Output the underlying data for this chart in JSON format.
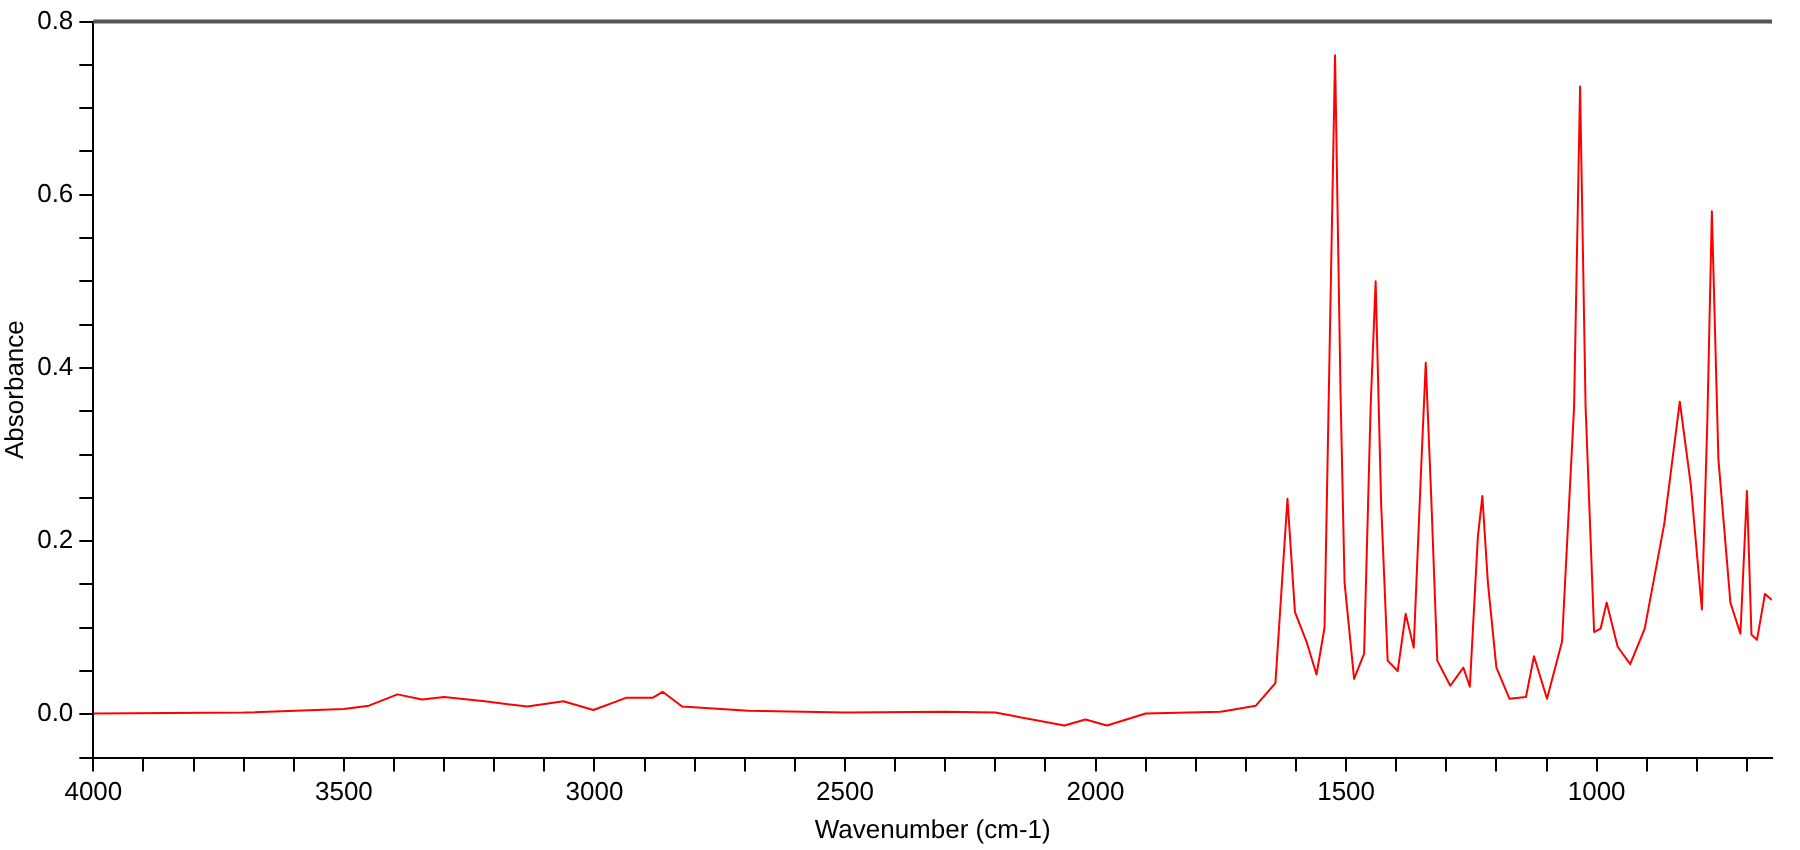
{
  "chart_data": {
    "type": "line",
    "xlabel": "Wavenumber (cm-1)",
    "ylabel": "Absorbance",
    "xlim": [
      4000,
      650
    ],
    "ylim": [
      -0.05,
      0.8
    ],
    "xticks": [
      4000,
      {
        "value": 3900,
        "label": null
      },
      {
        "value": 3800,
        "label": null
      },
      {
        "value": 3700,
        "label": null
      },
      {
        "value": 3600,
        "label": null
      },
      3500,
      {
        "value": 3400,
        "label": null
      },
      {
        "value": 3300,
        "label": null
      },
      {
        "value": 3200,
        "label": null
      },
      {
        "value": 3100,
        "label": null
      },
      3000,
      {
        "value": 2900,
        "label": null
      },
      {
        "value": 2800,
        "label": null
      },
      {
        "value": 2700,
        "label": null
      },
      {
        "value": 2600,
        "label": null
      },
      2500,
      {
        "value": 2400,
        "label": null
      },
      {
        "value": 2300,
        "label": null
      },
      {
        "value": 2200,
        "label": null
      },
      {
        "value": 2100,
        "label": null
      },
      2000,
      {
        "value": 1900,
        "label": null
      },
      {
        "value": 1800,
        "label": null
      },
      {
        "value": 1700,
        "label": null
      },
      {
        "value": 1600,
        "label": null
      },
      1500,
      {
        "value": 1400,
        "label": null
      },
      {
        "value": 1300,
        "label": null
      },
      {
        "value": 1200,
        "label": null
      },
      {
        "value": 1100,
        "label": null
      },
      1000,
      {
        "value": 900,
        "label": null
      },
      {
        "value": 800,
        "label": null
      },
      {
        "value": 700,
        "label": null
      }
    ],
    "yticks": [
      {
        "value": -0.05,
        "label": null
      },
      {
        "value": 0,
        "label": "0.0"
      },
      {
        "value": 0.05,
        "label": null
      },
      {
        "value": 0.1,
        "label": null
      },
      {
        "value": 0.15,
        "label": null
      },
      0.2,
      {
        "value": 0.25,
        "label": null
      },
      {
        "value": 0.3,
        "label": null
      },
      {
        "value": 0.35,
        "label": null
      },
      0.4,
      {
        "value": 0.45,
        "label": null
      },
      {
        "value": 0.5,
        "label": null
      },
      {
        "value": 0.55,
        "label": null
      },
      0.6,
      {
        "value": 0.65,
        "label": null
      },
      {
        "value": 0.7,
        "label": null
      },
      {
        "value": 0.75,
        "label": null
      },
      0.8
    ],
    "grid": false,
    "legend": false,
    "marker": "none",
    "line_style": "solid",
    "series": [
      {
        "color": "#ff0000",
        "x": [
          4000,
          3700,
          3500,
          3450,
          3393,
          3344,
          3300,
          3219,
          3134,
          3062,
          3002,
          2937,
          2884,
          2864,
          2825,
          2693,
          2500,
          2300,
          2200,
          2062,
          2020,
          1977,
          1900,
          1750,
          1680,
          1641,
          1617,
          1602,
          1579,
          1559,
          1543,
          1533,
          1522,
          1511,
          1503,
          1484,
          1464,
          1451,
          1441,
          1430,
          1417,
          1397,
          1381,
          1365,
          1351,
          1341,
          1330,
          1318,
          1292,
          1266,
          1253,
          1237,
          1228,
          1217,
          1200,
          1174,
          1141,
          1125,
          1099,
          1069,
          1045,
          1033,
          1022,
          1005,
          992,
          980,
          958,
          933,
          904,
          865,
          834,
          812,
          790,
          779,
          770,
          757,
          733,
          713,
          700,
          691,
          680,
          664,
          650
        ],
        "values": [
          0.001,
          0.002,
          0.006,
          0.01,
          0.023,
          0.017,
          0.02,
          0.015,
          0.009,
          0.015,
          0.005,
          0.019,
          0.019,
          0.026,
          0.009,
          0.004,
          0.002,
          0.003,
          0.002,
          -0.013,
          -0.006,
          -0.013,
          0.001,
          0.003,
          0.01,
          0.036,
          0.249,
          0.118,
          0.084,
          0.046,
          0.1,
          0.416,
          0.761,
          0.37,
          0.152,
          0.041,
          0.07,
          0.355,
          0.5,
          0.243,
          0.062,
          0.05,
          0.116,
          0.077,
          0.273,
          0.406,
          0.25,
          0.062,
          0.033,
          0.054,
          0.032,
          0.205,
          0.252,
          0.152,
          0.054,
          0.018,
          0.02,
          0.067,
          0.018,
          0.084,
          0.355,
          0.725,
          0.355,
          0.095,
          0.099,
          0.129,
          0.078,
          0.058,
          0.099,
          0.22,
          0.361,
          0.265,
          0.121,
          0.34,
          0.581,
          0.295,
          0.129,
          0.093,
          0.258,
          0.092,
          0.086,
          0.139,
          0.132
        ]
      }
    ]
  }
}
